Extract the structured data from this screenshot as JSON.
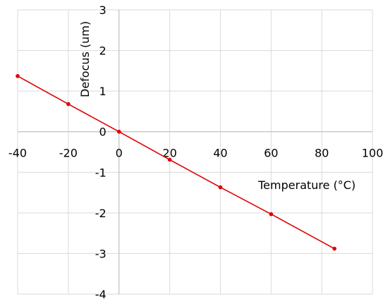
{
  "chart_data": {
    "type": "scatter",
    "title": "",
    "xlabel": "Temperature (°C)",
    "ylabel": "Defocus (um)",
    "xlim": [
      -40,
      100
    ],
    "ylim": [
      -4,
      3
    ],
    "x_ticks": [
      -40,
      -20,
      0,
      20,
      40,
      60,
      80,
      100
    ],
    "y_ticks": [
      -4,
      -3,
      -2,
      -1,
      0,
      1,
      2,
      3
    ],
    "grid": true,
    "legend": "none",
    "series": [
      {
        "color": "#e00000",
        "points": [
          {
            "x": -40,
            "y": 1.37
          },
          {
            "x": -20,
            "y": 0.68
          },
          {
            "x": 0,
            "y": 0.0
          },
          {
            "x": 20,
            "y": -0.69
          },
          {
            "x": 40,
            "y": -1.37
          },
          {
            "x": 60,
            "y": -2.03
          },
          {
            "x": 85,
            "y": -2.88
          }
        ]
      }
    ]
  }
}
